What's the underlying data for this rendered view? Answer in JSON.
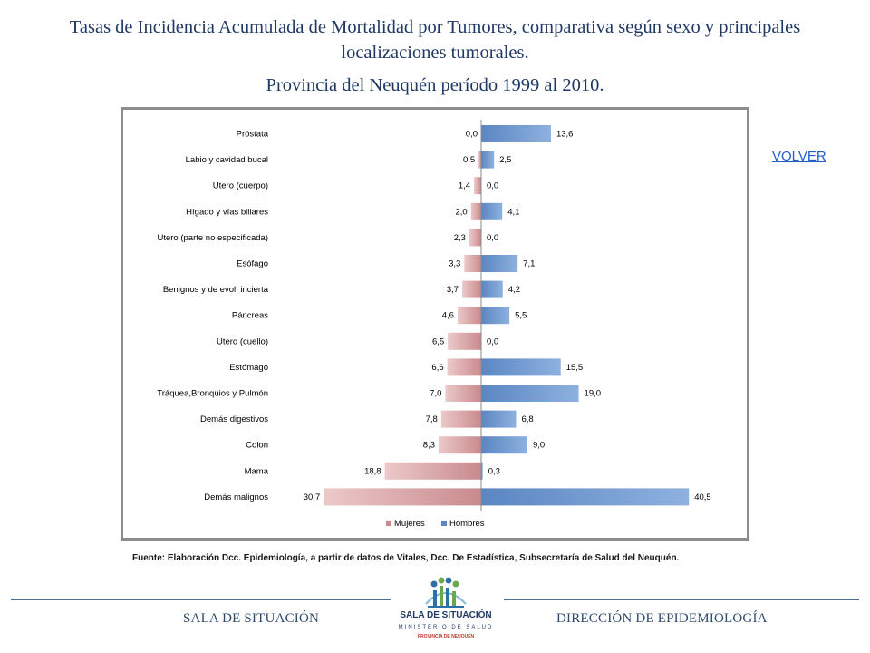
{
  "header": {
    "title_line1": "Tasas de Incidencia Acumulada de Mortalidad por Tumores, comparativa según sexo y principales localizaciones tumorales.",
    "title_line2": "Provincia del Neuquén período 1999 al 2010."
  },
  "nav": {
    "volver_label": "VOLVER"
  },
  "source_note": "Fuente: Elaboración Dcc. Epidemiología, a partir de datos de Vitales, Dcc. De Estadística, Subsecretaría de Salud del Neuquén.",
  "footer": {
    "left_text": "SALA DE SITUACIÓN",
    "right_text": "DIRECCIÓN DE EPIDEMIOLOGÍA",
    "logo": {
      "title": "SALA DE SITUACIÓN",
      "subtitle": "MINISTERIO DE SALUD",
      "subtitle2": "PROVINCIA DE NEUQUÉN"
    }
  },
  "colors": {
    "title": "#1f3864",
    "mujeres": "#d9a3a5",
    "hombres": "#6b94cc",
    "link": "#1f5fc8"
  },
  "chart_data": {
    "type": "bar",
    "orientation": "horizontal-butterfly",
    "categories": [
      "Próstata",
      "Labio y cavidad bucal",
      "Utero (cuerpo)",
      "Hígado y vías biliares",
      "Utero (parte no especificada)",
      "Esófago",
      "Benignos y de evol. incierta",
      "Páncreas",
      "Utero (cuello)",
      "Estómago",
      "Tráquea,Bronquios y Pulmón",
      "Demás digestivos",
      "Colon",
      "Mama",
      "Demás malignos"
    ],
    "series": [
      {
        "name": "Mujeres",
        "values": [
          0.0,
          0.5,
          1.4,
          2.0,
          2.3,
          3.3,
          3.7,
          4.6,
          6.5,
          6.6,
          7.0,
          7.8,
          8.3,
          18.8,
          30.7
        ],
        "labels": [
          "0,0",
          "0,5",
          "1,4",
          "2,0",
          "2,3",
          "3,3",
          "3,7",
          "4,6",
          "6,5",
          "6,6",
          "7,0",
          "7,8",
          "8,3",
          "18,8",
          "30,7"
        ]
      },
      {
        "name": "Hombres",
        "values": [
          13.6,
          2.5,
          0.0,
          4.1,
          0.0,
          7.1,
          4.2,
          5.5,
          0.0,
          15.5,
          19.0,
          6.8,
          9.0,
          0.3,
          40.5
        ],
        "labels": [
          "13,6",
          "2,5",
          "0,0",
          "4,1",
          "0,0",
          "7,1",
          "4,2",
          "5,5",
          "0,0",
          "15,5",
          "19,0",
          "6,8",
          "9,0",
          "0,3",
          "40,5"
        ]
      }
    ],
    "legend": {
      "position": "bottom"
    },
    "grid": false
  }
}
